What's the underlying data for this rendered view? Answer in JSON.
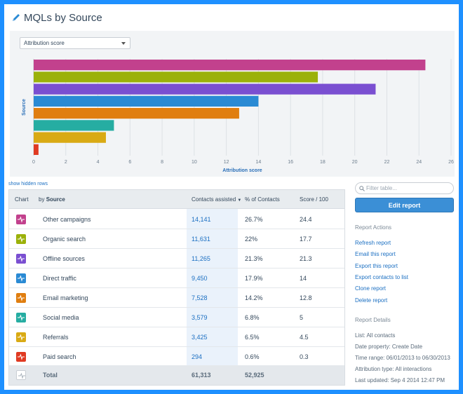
{
  "page": {
    "title": "MQLs by Source",
    "title_icon": "pencil-icon"
  },
  "controls": {
    "metric_select": "Attribution score",
    "show_hidden": "show hidden rows",
    "filter_placeholder": "Filter table...",
    "edit_report": "Edit report"
  },
  "colors": {
    "other_campaigns": "#c2418d",
    "organic_search": "#9bb10a",
    "offline_sources": "#7a4fd1",
    "direct_traffic": "#2a8ad4",
    "email_marketing": "#e07e10",
    "social_media": "#26ada2",
    "referrals": "#d9aa14",
    "paid_search": "#e03a22",
    "accent": "#3b8fd6"
  },
  "chart_data": {
    "type": "bar",
    "orientation": "horizontal",
    "categories": [
      "Other campaigns",
      "Organic search",
      "Offline sources",
      "Direct traffic",
      "Email marketing",
      "Social media",
      "Referrals",
      "Paid search"
    ],
    "values": [
      24.4,
      17.7,
      21.3,
      14,
      12.8,
      5,
      4.5,
      0.3
    ],
    "xlabel": "Attribution score",
    "ylabel": "Source",
    "xlim": [
      0,
      26
    ],
    "xticks": [
      0,
      2,
      4,
      6,
      8,
      10,
      12,
      14,
      16,
      18,
      20,
      22,
      24,
      26
    ],
    "grid": true,
    "tick_labels_on_y": false
  },
  "table": {
    "headers": {
      "chart": "Chart",
      "by": "by",
      "source": "Source",
      "contacts": "Contacts assisted",
      "pct": "% of Contacts",
      "score": "Score / 100"
    },
    "rows": [
      {
        "source": "Other campaigns",
        "contacts": "14,141",
        "pct": "26.7%",
        "score": "24.4",
        "color": "#c2418d"
      },
      {
        "source": "Organic search",
        "contacts": "11,631",
        "pct": "22%",
        "score": "17.7",
        "color": "#9bb10a"
      },
      {
        "source": "Offline sources",
        "contacts": "11,265",
        "pct": "21.3%",
        "score": "21.3",
        "color": "#7a4fd1"
      },
      {
        "source": "Direct traffic",
        "contacts": "9,450",
        "pct": "17.9%",
        "score": "14",
        "color": "#2a8ad4"
      },
      {
        "source": "Email marketing",
        "contacts": "7,528",
        "pct": "14.2%",
        "score": "12.8",
        "color": "#e07e10"
      },
      {
        "source": "Social media",
        "contacts": "3,579",
        "pct": "6.8%",
        "score": "5",
        "color": "#26ada2"
      },
      {
        "source": "Referrals",
        "contacts": "3,425",
        "pct": "6.5%",
        "score": "4.5",
        "color": "#d9aa14"
      },
      {
        "source": "Paid search",
        "contacts": "294",
        "pct": "0.6%",
        "score": "0.3",
        "color": "#e03a22"
      }
    ],
    "total": {
      "label": "Total",
      "contacts": "61,313",
      "pct": "52,925"
    }
  },
  "sidebar": {
    "actions_heading": "Report Actions",
    "actions": [
      "Refresh report",
      "Email this report",
      "Export this report",
      "Export contacts to list",
      "Clone report",
      "Delete report"
    ],
    "details_heading": "Report Details",
    "details": [
      "List: All contacts",
      "Date property: Create Date",
      "Time range: 06/01/2013 to 06/30/2013",
      "Attribution type: All interactions",
      "Last updated: Sep 4 2014 12:47 PM"
    ]
  }
}
